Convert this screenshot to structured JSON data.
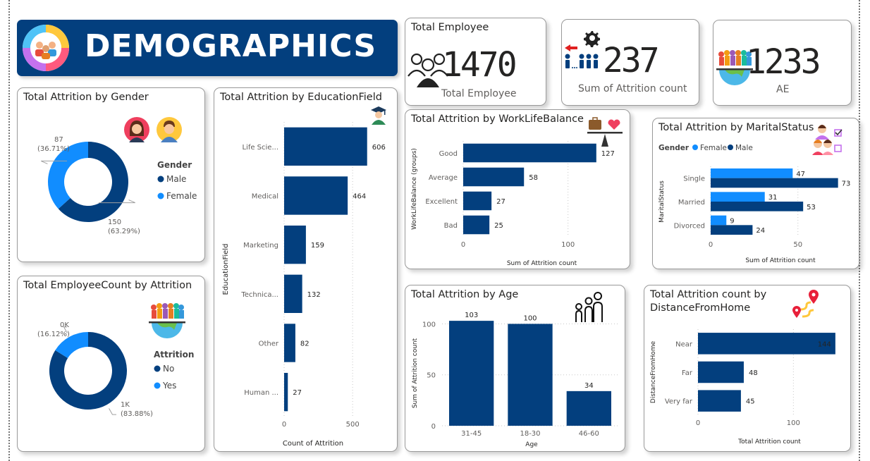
{
  "colors": {
    "dark": "#033f7e",
    "light": "#118dff",
    "banner": "#033f7e"
  },
  "header": {
    "title": "DEMOGRAPHICS",
    "icon": "team-badge-icon"
  },
  "kpi": [
    {
      "title": "Total Employee",
      "value": "1470",
      "label": "Total Employee",
      "icon": "people-group-icon"
    },
    {
      "title": "",
      "value": "237",
      "label": "Sum of Attrition count",
      "icon": "employee-leaving-icon"
    },
    {
      "title": "",
      "value": "1233",
      "label": "AE",
      "icon": "globe-people-icon"
    }
  ],
  "chart_data": [
    {
      "id": "gender",
      "type": "pie",
      "donut": true,
      "title": "Total Attrition by Gender",
      "legend_title": "Gender",
      "legend": [
        "Male",
        "Female"
      ],
      "slices": [
        {
          "name": "Male",
          "value": 150,
          "label": "150",
          "pct": "(63.29%)"
        },
        {
          "name": "Female",
          "value": 87,
          "label": "87",
          "pct": "(36.71%)"
        }
      ]
    },
    {
      "id": "employeecount",
      "type": "pie",
      "donut": true,
      "title": "Total EmployeeCount by Attrition",
      "legend_title": "Attrition",
      "legend": [
        "No",
        "Yes"
      ],
      "slices": [
        {
          "name": "No",
          "value": 83.88,
          "label": "1K",
          "pct": "(83.88%)"
        },
        {
          "name": "Yes",
          "value": 16.12,
          "label": "0K",
          "pct": "(16.12%)"
        }
      ]
    },
    {
      "id": "education",
      "type": "bar",
      "orientation": "horizontal",
      "title": "Total Attrition by EducationField",
      "xlabel": "Count of Attrition",
      "ylabel": "EducationField",
      "xlim": [
        0,
        700
      ],
      "xticks": [
        0,
        500
      ],
      "categories": [
        "Life Scie...",
        "Medical",
        "Marketing",
        "Technica...",
        "Other",
        "Human ..."
      ],
      "values": [
        606,
        464,
        159,
        132,
        82,
        27
      ]
    },
    {
      "id": "worklife",
      "type": "bar",
      "orientation": "horizontal",
      "title": "Total Attrition by WorkLifeBalance",
      "xlabel": "Sum of Attrition count",
      "ylabel": "WorkLifeBalance (groups)",
      "xlim": [
        0,
        150
      ],
      "xticks": [
        0,
        100
      ],
      "categories": [
        "Good",
        "Average",
        "Excellent",
        "Bad"
      ],
      "values": [
        127,
        58,
        27,
        25
      ]
    },
    {
      "id": "marital",
      "type": "bar",
      "orientation": "horizontal",
      "title": "Total Attrition by MaritalStatus",
      "xlabel": "Sum of Attrition count",
      "ylabel": "MaritalStatus",
      "xlim": [
        0,
        80
      ],
      "xticks": [
        0,
        50
      ],
      "legend_title": "Gender",
      "categories": [
        "Single",
        "Married",
        "Divorced"
      ],
      "series": [
        {
          "name": "Female",
          "values": [
            47,
            31,
            9
          ]
        },
        {
          "name": "Male",
          "values": [
            73,
            53,
            24
          ]
        }
      ]
    },
    {
      "id": "age",
      "type": "bar",
      "orientation": "vertical",
      "title": "Total Attrition by Age",
      "xlabel": "Age",
      "ylabel": "Sum of Attrition count",
      "ylim": [
        0,
        110
      ],
      "yticks": [
        0,
        50,
        100
      ],
      "categories": [
        "31-45",
        "18-30",
        "46-60"
      ],
      "values": [
        103,
        100,
        34
      ]
    },
    {
      "id": "distance",
      "type": "bar",
      "orientation": "horizontal",
      "title": "Total Attrition count by DistanceFromHome",
      "xlabel": "Total Attrition count",
      "ylabel": "DistanceFromHome",
      "xlim": [
        0,
        150
      ],
      "xticks": [
        0,
        100
      ],
      "categories": [
        "Near",
        "Far",
        "Very far"
      ],
      "values": [
        144,
        48,
        45
      ]
    }
  ]
}
